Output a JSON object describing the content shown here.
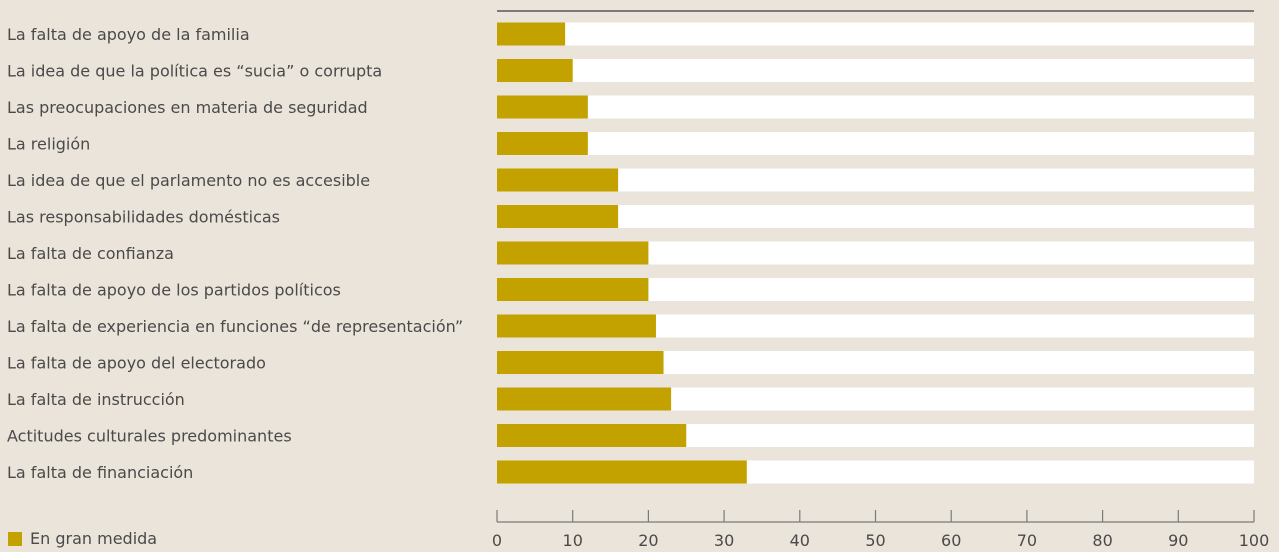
{
  "chart_data": {
    "type": "bar",
    "orientation": "horizontal",
    "categories": [
      "La falta de apoyo de la familia",
      "La idea de que la política es “sucia” o corrupta",
      "Las preocupaciones en materia de seguridad",
      "La religión",
      "La idea de que el parlamento no es accesible",
      "Las responsabilidades domésticas",
      "La falta de confianza",
      "La falta de apoyo de los partidos políticos",
      "La falta de experiencia en funciones “de representación”",
      "La falta de apoyo del electorado",
      "La falta de instrucción",
      "Actitudes culturales predominantes",
      "La falta de financiación"
    ],
    "series": [
      {
        "name": "En gran medida",
        "color": "#c3a200",
        "values": [
          9,
          10,
          12,
          12,
          16,
          16,
          20,
          20,
          21,
          22,
          23,
          25,
          33
        ]
      }
    ],
    "xlim": [
      0,
      100
    ],
    "xticks": [
      0,
      10,
      20,
      30,
      40,
      50,
      60,
      70,
      80,
      90,
      100
    ],
    "track_color": "#ffffff",
    "axis_color": "#7a7a7a",
    "legend_position": "bottom-left"
  }
}
